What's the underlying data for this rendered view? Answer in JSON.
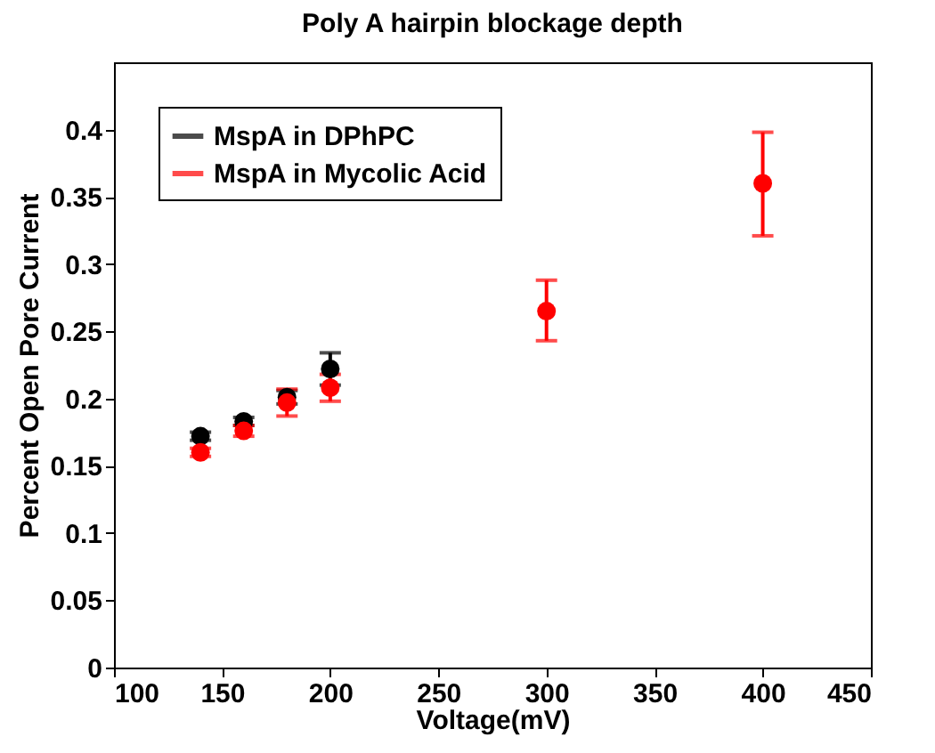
{
  "chart_data": {
    "type": "scatter",
    "title": "Poly A hairpin blockage depth",
    "xlabel": "Voltage(mV)",
    "ylabel": "Percent Open Pore Current",
    "xlim": [
      100,
      450
    ],
    "xticks": [
      100,
      150,
      200,
      250,
      300,
      350,
      400,
      450
    ],
    "ylim": [
      0,
      0.45
    ],
    "yticks": [
      0,
      0.05,
      0.1,
      0.15,
      0.2,
      0.25,
      0.3,
      0.35,
      0.4
    ],
    "grid": false,
    "legend": "top left",
    "marker": "circle",
    "series": [
      {
        "name": "MspA in DPhPC",
        "color": "#000000",
        "x": [
          140,
          160,
          180,
          200
        ],
        "values": [
          0.172,
          0.183,
          0.201,
          0.222
        ],
        "errors": [
          0.003,
          0.003,
          0.005,
          0.012
        ]
      },
      {
        "name": "MspA in Mycolic Acid",
        "color": "#ff0000",
        "x": [
          140,
          160,
          180,
          200,
          300,
          400
        ],
        "values": [
          0.16,
          0.176,
          0.197,
          0.208,
          0.265,
          0.36
        ],
        "errors": [
          0.003,
          0.004,
          0.01,
          0.01,
          [
            0.243,
            0.288
          ],
          [
            0.321,
            0.398
          ]
        ]
      }
    ]
  }
}
